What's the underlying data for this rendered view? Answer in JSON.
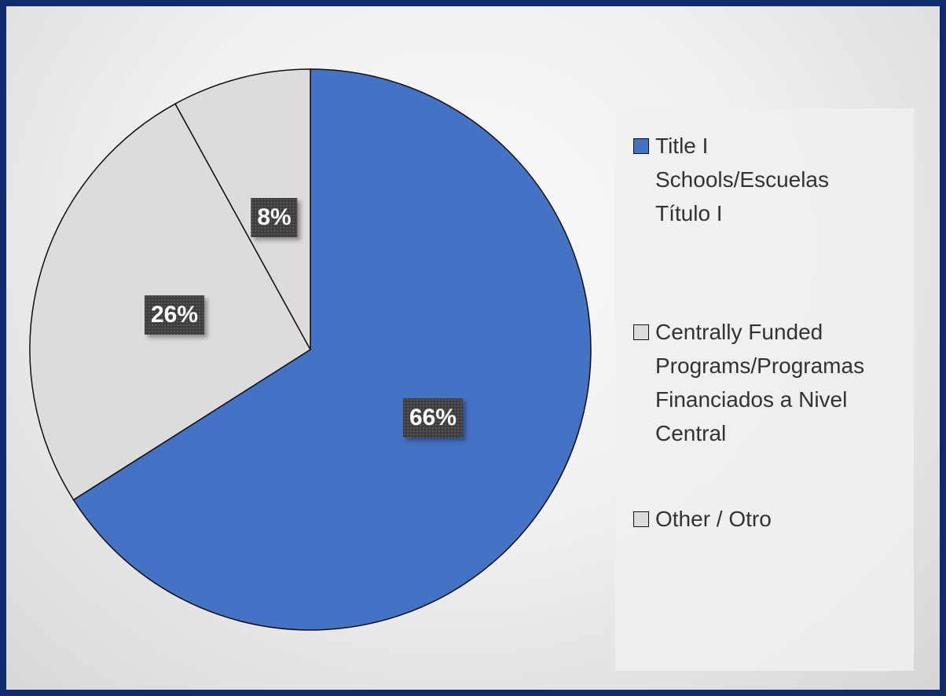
{
  "chart_data": {
    "type": "pie",
    "slices": [
      {
        "label": "Title I\nSchools/Escuelas\nTítulo I",
        "value": 66,
        "value_label": "66%",
        "color": "#4472c4"
      },
      {
        "label": "Centrally Funded\nPrograms/Programas\nFinanciados a Nivel\nCentral",
        "value": 26,
        "value_label": "26%",
        "color": "#dcdcdc"
      },
      {
        "label": "Other  / Otro",
        "value": 8,
        "value_label": "8%",
        "color": "#dcdcdc"
      }
    ],
    "legend_position": "right",
    "label_style": "dark boxes with white bold percentage text"
  },
  "colors": {
    "border": "#0e2a6b",
    "slice_outline": "#111111"
  }
}
